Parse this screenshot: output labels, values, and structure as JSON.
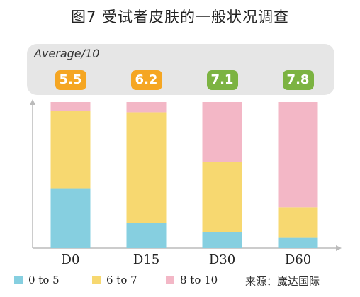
{
  "title": "图7 受试者皮肤的一般状况调查",
  "average_label": "Average/10",
  "chart_data": {
    "type": "bar",
    "stacked": true,
    "categories": [
      "D0",
      "D15",
      "D30",
      "D60"
    ],
    "averages": [
      "5.5",
      "6.2",
      "7.1",
      "7.8"
    ],
    "average_colors": [
      "#f5a623",
      "#f5a623",
      "#7cb342",
      "#7cb342"
    ],
    "series": [
      {
        "name": "0 to 5",
        "color": "#86cfe0",
        "values": [
          41,
          17,
          11,
          7
        ]
      },
      {
        "name": "6 to 7",
        "color": "#f7d870",
        "values": [
          53,
          76,
          48,
          21
        ]
      },
      {
        "name": "8 to 10",
        "color": "#f3b7c6",
        "values": [
          6,
          7,
          41,
          72
        ]
      }
    ],
    "ylim": [
      0,
      100
    ],
    "xlabel": "",
    "ylabel": ""
  },
  "source_text": "来源：崴达国际"
}
